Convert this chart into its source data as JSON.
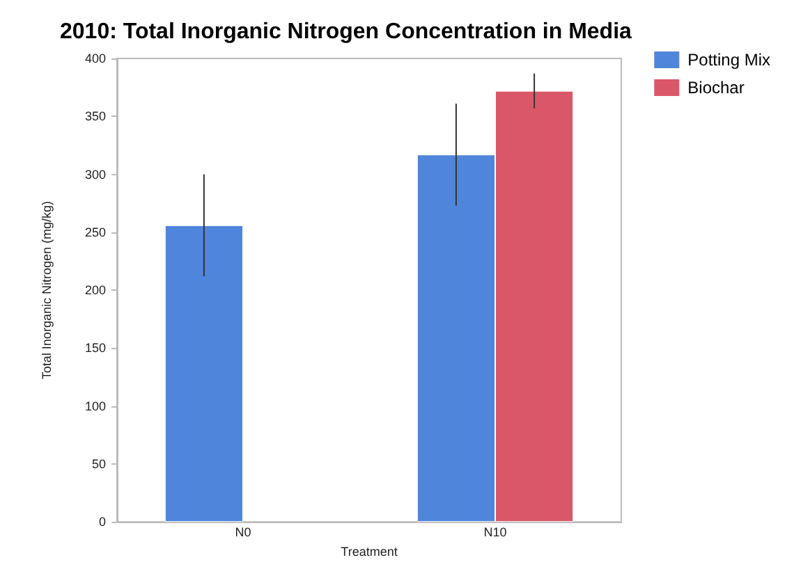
{
  "chart_data": {
    "type": "bar",
    "title": "2010: Total Inorganic Nitrogen Concentration in Media",
    "xlabel": "Treatment",
    "ylabel": "Total Inorganic Nitrogen (mg/kg)",
    "categories": [
      "N0",
      "N10"
    ],
    "series": [
      {
        "name": "Potting Mix",
        "color": "#4f86db",
        "values": [
          256,
          317
        ],
        "errors": [
          44,
          44
        ]
      },
      {
        "name": "Biochar",
        "color": "#da5769",
        "values": [
          null,
          372
        ],
        "errors": [
          null,
          15
        ]
      }
    ],
    "ylim": [
      0,
      400
    ],
    "yticks": [
      0,
      50,
      100,
      150,
      200,
      250,
      300,
      350,
      400
    ],
    "grid": false,
    "legend": "top right"
  }
}
